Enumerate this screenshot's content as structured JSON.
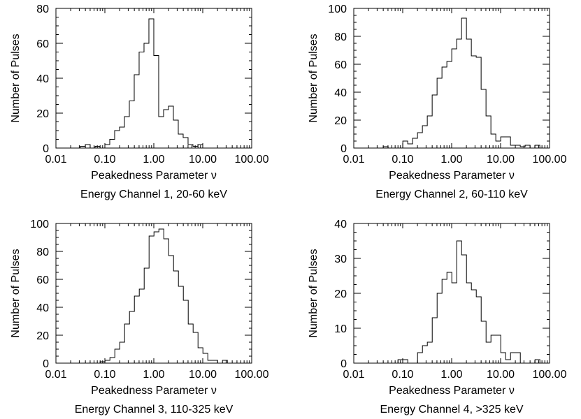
{
  "chart_data": [
    {
      "type": "histogram",
      "title": "",
      "xlabel": "Peakedness Parameter ν",
      "caption": "Energy Channel 1, 20-60 keV",
      "ylabel": "Number of Pulses",
      "xscale": "log",
      "xlim": [
        0.01,
        100
      ],
      "ylim": [
        0,
        80
      ],
      "xtick_values": [
        0.01,
        0.1,
        1,
        10,
        100
      ],
      "xtick_labels": [
        "0.01",
        "0.10",
        "1.00",
        "10.00",
        "100.00"
      ],
      "ytick_values": [
        0,
        20,
        40,
        60,
        80
      ],
      "ytick_labels": [
        "0",
        "20",
        "40",
        "60",
        "80"
      ],
      "bin_start": 0.0316,
      "bins_per_decade": 10,
      "counts": [
        1,
        2,
        0,
        1,
        0,
        2,
        5,
        10,
        12,
        18,
        27,
        42,
        55,
        60,
        74,
        53,
        18,
        22,
        24,
        16,
        8,
        6,
        2,
        1,
        2
      ]
    },
    {
      "type": "histogram",
      "title": "",
      "xlabel": "Peakedness Parameter ν",
      "caption": "Energy Channel 2, 60-110 keV",
      "ylabel": "Number of Pulses",
      "xscale": "log",
      "xlim": [
        0.01,
        100
      ],
      "ylim": [
        0,
        100
      ],
      "xtick_values": [
        0.01,
        0.1,
        1,
        10,
        100
      ],
      "xtick_labels": [
        "0.01",
        "0.10",
        "1.00",
        "10.00",
        "100.00"
      ],
      "ytick_values": [
        0,
        20,
        40,
        60,
        80,
        100
      ],
      "ytick_labels": [
        "0",
        "20",
        "40",
        "60",
        "80",
        "100"
      ],
      "bin_start": 0.04,
      "bins_per_decade": 10,
      "counts": [
        1,
        0,
        0,
        0,
        5,
        3,
        7,
        11,
        16,
        23,
        38,
        50,
        58,
        62,
        71,
        78,
        93,
        78,
        66,
        65,
        42,
        23,
        10,
        5,
        8,
        8,
        2,
        2,
        1,
        2,
        0,
        2
      ]
    },
    {
      "type": "histogram",
      "title": "",
      "xlabel": "Peakedness Parameter ν",
      "caption": "Energy Channel 3, 110-325 keV",
      "ylabel": "Number of Pulses",
      "xscale": "log",
      "xlim": [
        0.01,
        100
      ],
      "ylim": [
        0,
        100
      ],
      "xtick_values": [
        0.01,
        0.1,
        1,
        10,
        100
      ],
      "xtick_labels": [
        "0.01",
        "0.10",
        "1.00",
        "10.00",
        "100.00"
      ],
      "ytick_values": [
        0,
        20,
        40,
        60,
        80,
        100
      ],
      "ytick_labels": [
        "0",
        "20",
        "40",
        "60",
        "80",
        "100"
      ],
      "bin_start": 0.08,
      "bins_per_decade": 10,
      "counts": [
        1,
        2,
        4,
        10,
        15,
        28,
        37,
        48,
        53,
        68,
        91,
        94,
        96,
        89,
        77,
        66,
        55,
        45,
        28,
        22,
        11,
        7,
        2,
        2,
        0,
        2
      ]
    },
    {
      "type": "histogram",
      "title": "",
      "xlabel": "Peakedness Parameter ν",
      "caption": "Energy Channel 4, >325 keV",
      "ylabel": "Number of Pulses",
      "xscale": "log",
      "xlim": [
        0.01,
        100
      ],
      "ylim": [
        0,
        40
      ],
      "xtick_values": [
        0.01,
        0.1,
        1,
        10,
        100
      ],
      "xtick_labels": [
        "0.01",
        "0.10",
        "1.00",
        "10.00",
        "100.00"
      ],
      "ytick_values": [
        0,
        10,
        20,
        30,
        40
      ],
      "ytick_labels": [
        "0",
        "10",
        "20",
        "30",
        "40"
      ],
      "bin_start": 0.08,
      "bins_per_decade": 10,
      "counts": [
        1,
        1,
        0,
        0,
        3,
        5,
        6,
        13,
        20,
        24,
        26,
        23,
        35,
        31,
        23,
        21,
        19,
        12,
        6,
        8,
        8,
        3,
        1,
        3,
        3,
        0,
        0,
        0,
        1
      ]
    }
  ]
}
